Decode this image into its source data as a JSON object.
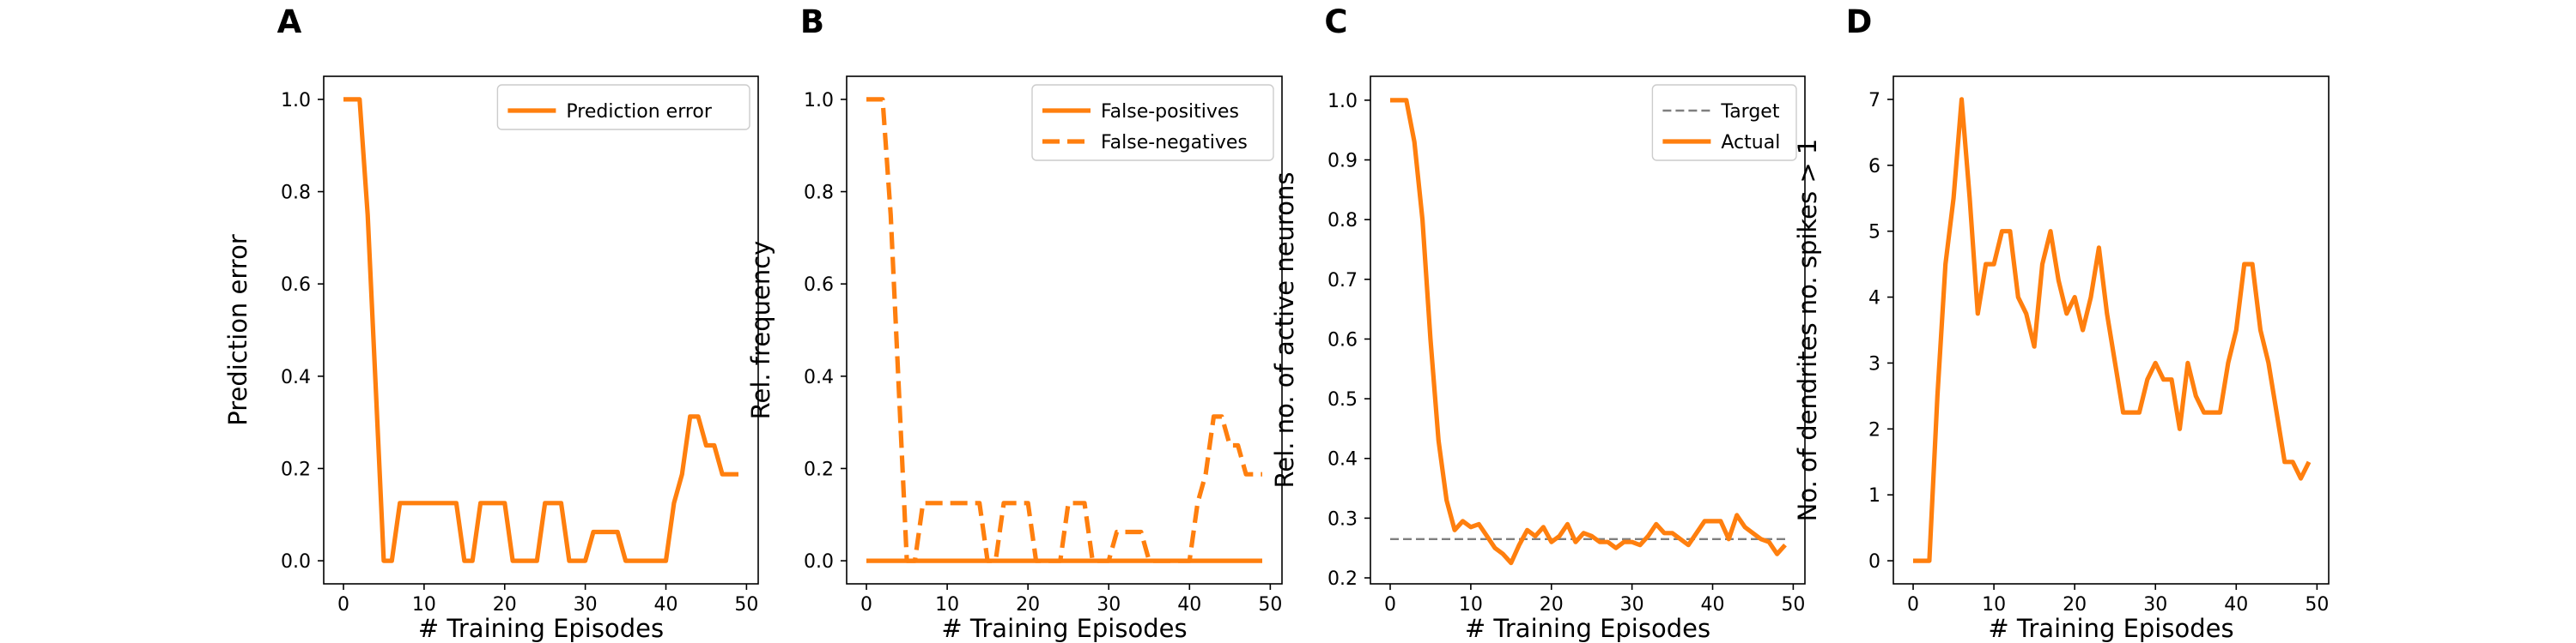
{
  "colors": {
    "accent": "#ff7f0e",
    "target": "#7f7f7f",
    "axes": "#000000"
  },
  "chart_data": [
    {
      "panel_label": "A",
      "type": "line",
      "xlabel": "# Training Episodes",
      "ylabel": "Prediction error",
      "xlim": [
        -2.45,
        51.45
      ],
      "ylim": [
        -0.05,
        1.05
      ],
      "xticks": [
        0,
        10,
        20,
        30,
        40,
        50
      ],
      "yticks": [
        0.0,
        0.2,
        0.4,
        0.6,
        0.8,
        1.0
      ],
      "ytick_labels": [
        "0.0",
        "0.2",
        "0.4",
        "0.6",
        "0.8",
        "1.0"
      ],
      "legend_position": "upper-right",
      "series": [
        {
          "name": "Prediction error",
          "style": "solid",
          "color": "#ff7f0e",
          "x": [
            0,
            1,
            2,
            3,
            4,
            5,
            6,
            7,
            8,
            9,
            10,
            11,
            12,
            13,
            14,
            15,
            16,
            17,
            18,
            19,
            20,
            21,
            22,
            23,
            24,
            25,
            26,
            27,
            28,
            29,
            30,
            31,
            32,
            33,
            34,
            35,
            36,
            37,
            38,
            39,
            40,
            41,
            42,
            43,
            44,
            45,
            46,
            47,
            48,
            49
          ],
          "y": [
            1.0,
            1.0,
            1.0,
            0.75,
            0.375,
            0.0,
            0.0,
            0.125,
            0.125,
            0.125,
            0.125,
            0.125,
            0.125,
            0.125,
            0.125,
            0.0,
            0.0,
            0.125,
            0.125,
            0.125,
            0.125,
            0.0,
            0.0,
            0.0,
            0.0,
            0.125,
            0.125,
            0.125,
            0.0,
            0.0,
            0.0,
            0.0625,
            0.0625,
            0.0625,
            0.0625,
            0.0,
            0.0,
            0.0,
            0.0,
            0.0,
            0.0,
            0.125,
            0.1875,
            0.3125,
            0.3125,
            0.25,
            0.25,
            0.1875,
            0.1875,
            0.1875
          ]
        }
      ]
    },
    {
      "panel_label": "B",
      "type": "line",
      "xlabel": "# Training Episodes",
      "ylabel": "Rel. frequency",
      "xlim": [
        -2.45,
        51.45
      ],
      "ylim": [
        -0.05,
        1.05
      ],
      "xticks": [
        0,
        10,
        20,
        30,
        40,
        50
      ],
      "yticks": [
        0.0,
        0.2,
        0.4,
        0.6,
        0.8,
        1.0
      ],
      "ytick_labels": [
        "0.0",
        "0.2",
        "0.4",
        "0.6",
        "0.8",
        "1.0"
      ],
      "legend_position": "upper-right",
      "series": [
        {
          "name": "False-positives",
          "style": "solid",
          "color": "#ff7f0e",
          "x": [
            0,
            49
          ],
          "y": [
            0.0,
            0.0
          ]
        },
        {
          "name": "False-negatives",
          "style": "dashed",
          "color": "#ff7f0e",
          "x": [
            0,
            1,
            2,
            3,
            4,
            5,
            6,
            7,
            8,
            9,
            10,
            11,
            12,
            13,
            14,
            15,
            16,
            17,
            18,
            19,
            20,
            21,
            22,
            23,
            24,
            25,
            26,
            27,
            28,
            29,
            30,
            31,
            32,
            33,
            34,
            35,
            36,
            37,
            38,
            39,
            40,
            41,
            42,
            43,
            44,
            45,
            46,
            47,
            48,
            49
          ],
          "y": [
            1.0,
            1.0,
            1.0,
            0.75,
            0.375,
            0.0,
            0.0,
            0.125,
            0.125,
            0.125,
            0.125,
            0.125,
            0.125,
            0.125,
            0.125,
            0.0,
            0.0,
            0.125,
            0.125,
            0.125,
            0.125,
            0.0,
            0.0,
            0.0,
            0.0,
            0.125,
            0.125,
            0.125,
            0.0,
            0.0,
            0.0,
            0.0625,
            0.0625,
            0.0625,
            0.0625,
            0.0,
            0.0,
            0.0,
            0.0,
            0.0,
            0.0,
            0.125,
            0.1875,
            0.3125,
            0.3125,
            0.25,
            0.25,
            0.1875,
            0.1875,
            0.1875
          ]
        }
      ]
    },
    {
      "panel_label": "C",
      "type": "line",
      "xlabel": "# Training Episodes",
      "ylabel": "Rel. no. of active neurons",
      "xlim": [
        -2.45,
        51.45
      ],
      "ylim": [
        0.19,
        1.04
      ],
      "xticks": [
        0,
        10,
        20,
        30,
        40,
        50
      ],
      "yticks": [
        0.2,
        0.3,
        0.4,
        0.5,
        0.6,
        0.7,
        0.8,
        0.9,
        1.0
      ],
      "ytick_labels": [
        "0.2",
        "0.3",
        "0.4",
        "0.5",
        "0.6",
        "0.7",
        "0.8",
        "0.9",
        "1.0"
      ],
      "legend_position": "upper-right",
      "series": [
        {
          "name": "Target",
          "style": "dashed-thin",
          "color": "#7f7f7f",
          "x": [
            0,
            49
          ],
          "y": [
            0.265,
            0.265
          ]
        },
        {
          "name": "Actual",
          "style": "solid",
          "color": "#ff7f0e",
          "x": [
            0,
            1,
            2,
            3,
            4,
            5,
            6,
            7,
            8,
            9,
            10,
            11,
            12,
            13,
            14,
            15,
            16,
            17,
            18,
            19,
            20,
            21,
            22,
            23,
            24,
            25,
            26,
            27,
            28,
            29,
            30,
            31,
            32,
            33,
            34,
            35,
            36,
            37,
            38,
            39,
            40,
            41,
            42,
            43,
            44,
            45,
            46,
            47,
            48,
            49
          ],
          "y": [
            1.0,
            1.0,
            1.0,
            0.93,
            0.8,
            0.6,
            0.43,
            0.33,
            0.28,
            0.295,
            0.285,
            0.29,
            0.27,
            0.25,
            0.24,
            0.225,
            0.255,
            0.28,
            0.27,
            0.285,
            0.26,
            0.27,
            0.29,
            0.26,
            0.275,
            0.27,
            0.26,
            0.26,
            0.25,
            0.26,
            0.26,
            0.255,
            0.27,
            0.29,
            0.275,
            0.275,
            0.265,
            0.255,
            0.275,
            0.295,
            0.295,
            0.295,
            0.265,
            0.305,
            0.285,
            0.275,
            0.265,
            0.26,
            0.24,
            0.255
          ]
        }
      ]
    },
    {
      "panel_label": "D",
      "type": "line",
      "xlabel": "# Training Episodes",
      "ylabel": "No. of dendrites no. spikes > 1",
      "xlim": [
        -2.45,
        51.45
      ],
      "ylim": [
        -0.35,
        7.35
      ],
      "xticks": [
        0,
        10,
        20,
        30,
        40,
        50
      ],
      "yticks": [
        0,
        1,
        2,
        3,
        4,
        5,
        6,
        7
      ],
      "ytick_labels": [
        "0",
        "1",
        "2",
        "3",
        "4",
        "5",
        "6",
        "7"
      ],
      "legend_position": "none",
      "series": [
        {
          "style": "solid",
          "color": "#ff7f0e",
          "x": [
            0,
            1,
            2,
            3,
            4,
            5,
            6,
            7,
            8,
            9,
            10,
            11,
            12,
            13,
            14,
            15,
            16,
            17,
            18,
            19,
            20,
            21,
            22,
            23,
            24,
            25,
            26,
            27,
            28,
            29,
            30,
            31,
            32,
            33,
            34,
            35,
            36,
            37,
            38,
            39,
            40,
            41,
            42,
            43,
            44,
            45,
            46,
            47,
            48,
            49
          ],
          "y": [
            0,
            0,
            0,
            2.5,
            4.5,
            5.5,
            7.0,
            5.5,
            3.75,
            4.5,
            4.5,
            5.0,
            5.0,
            4.0,
            3.75,
            3.25,
            4.5,
            5.0,
            4.25,
            3.75,
            4.0,
            3.5,
            4.0,
            4.75,
            3.75,
            3.0,
            2.25,
            2.25,
            2.25,
            2.75,
            3.0,
            2.75,
            2.75,
            2.0,
            3.0,
            2.5,
            2.25,
            2.25,
            2.25,
            3.0,
            3.5,
            4.5,
            4.5,
            3.5,
            3.0,
            2.25,
            1.5,
            1.5,
            1.25,
            1.5
          ]
        }
      ]
    }
  ]
}
